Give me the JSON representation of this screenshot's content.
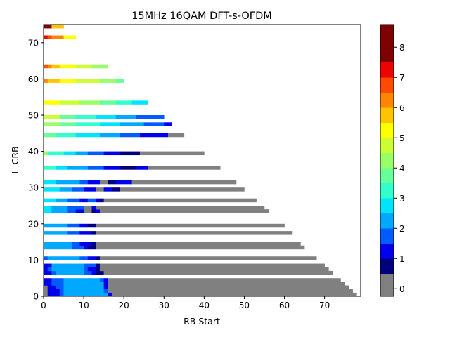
{
  "chart_data": {
    "type": "heatmap",
    "title": "15MHz 16QAM DFT-s-OFDM",
    "xlabel": "RB Start",
    "ylabel": "L_CRB",
    "xlim": [
      0,
      79
    ],
    "ylim": [
      0,
      75
    ],
    "xticks": [
      0,
      10,
      20,
      30,
      40,
      50,
      60,
      70
    ],
    "yticks": [
      0,
      10,
      20,
      30,
      40,
      50,
      60,
      70
    ],
    "colorbar": {
      "levels": [
        "≤0",
        "0.5",
        "1",
        "1.5",
        "2",
        "2.5",
        "3",
        "3.5",
        "4",
        "4.5",
        "5",
        "5.5",
        "6",
        "6.5",
        "7",
        "7.5",
        "8",
        "8.5"
      ],
      "colors": [
        "#808080",
        "#00007f",
        "#0000ed",
        "#005cff",
        "#00a8ff",
        "#00e5ff",
        "#33ffcc",
        "#66ff99",
        "#99ff66",
        "#ccff33",
        "#ffff00",
        "#ffc400",
        "#ff8600",
        "#ff4a00",
        "#ed0400",
        "#7f0000"
      ],
      "ticks": [
        0,
        1,
        2,
        3,
        4,
        5,
        6,
        7,
        8
      ]
    },
    "grid": false,
    "rows": [
      {
        "l": 1,
        "segs": [
          [
            0,
            1,
            0
          ],
          [
            1,
            4,
            2
          ],
          [
            4,
            5,
            3
          ],
          [
            5,
            16,
            4
          ],
          [
            16,
            17,
            2
          ],
          [
            17,
            78,
            0
          ]
        ]
      },
      {
        "l": 2,
        "segs": [
          [
            0,
            1,
            0
          ],
          [
            1,
            4,
            2
          ],
          [
            4,
            5,
            3
          ],
          [
            5,
            15,
            4
          ],
          [
            15,
            16,
            3
          ],
          [
            16,
            77,
            0
          ]
        ]
      },
      {
        "l": 3,
        "segs": [
          [
            0,
            1,
            0
          ],
          [
            1,
            3,
            2
          ],
          [
            3,
            5,
            3
          ],
          [
            5,
            15,
            4
          ],
          [
            15,
            16,
            2
          ],
          [
            16,
            76,
            0
          ]
        ]
      },
      {
        "l": 4,
        "segs": [
          [
            0,
            2,
            2
          ],
          [
            2,
            5,
            3
          ],
          [
            5,
            15,
            4
          ],
          [
            15,
            16,
            2
          ],
          [
            16,
            75,
            0
          ]
        ]
      },
      {
        "l": 5,
        "segs": [
          [
            0,
            2,
            2
          ],
          [
            2,
            5,
            3
          ],
          [
            5,
            14,
            4
          ],
          [
            14,
            15,
            3
          ],
          [
            15,
            16,
            2
          ],
          [
            16,
            74,
            0
          ]
        ]
      },
      {
        "l": 7,
        "segs": [
          [
            0,
            2,
            2
          ],
          [
            2,
            3,
            3
          ],
          [
            3,
            10,
            4
          ],
          [
            10,
            12,
            3
          ],
          [
            12,
            13,
            2
          ],
          [
            13,
            15,
            1
          ],
          [
            15,
            72,
            0
          ]
        ]
      },
      {
        "l": 8,
        "segs": [
          [
            0,
            1,
            2
          ],
          [
            1,
            2,
            3
          ],
          [
            2,
            10,
            4
          ],
          [
            10,
            11,
            3
          ],
          [
            11,
            13,
            2
          ],
          [
            13,
            14,
            1
          ],
          [
            14,
            71,
            0
          ]
        ]
      },
      {
        "l": 9,
        "segs": [
          [
            0,
            2,
            2
          ],
          [
            2,
            10,
            4
          ],
          [
            10,
            13,
            3
          ],
          [
            13,
            14,
            1
          ],
          [
            14,
            70,
            0
          ]
        ]
      },
      {
        "l": 11,
        "segs": [
          [
            0,
            1,
            3
          ],
          [
            1,
            9,
            4
          ],
          [
            9,
            11,
            3
          ],
          [
            11,
            13,
            2
          ],
          [
            13,
            14,
            1
          ],
          [
            14,
            68,
            0
          ]
        ]
      },
      {
        "l": 14,
        "segs": [
          [
            0,
            7,
            4
          ],
          [
            7,
            10,
            3
          ],
          [
            10,
            11,
            2
          ],
          [
            11,
            13,
            1
          ],
          [
            13,
            65,
            0
          ]
        ]
      },
      {
        "l": 15,
        "segs": [
          [
            0,
            7,
            4
          ],
          [
            7,
            9,
            3
          ],
          [
            9,
            12,
            2
          ],
          [
            12,
            13,
            1
          ],
          [
            13,
            64,
            0
          ]
        ]
      },
      {
        "l": 18,
        "segs": [
          [
            0,
            6,
            4
          ],
          [
            6,
            9,
            3
          ],
          [
            9,
            12,
            2
          ],
          [
            12,
            13,
            1
          ],
          [
            13,
            62,
            0
          ]
        ]
      },
      {
        "l": 20,
        "segs": [
          [
            0,
            6,
            4
          ],
          [
            6,
            9,
            3
          ],
          [
            9,
            11,
            2
          ],
          [
            11,
            13,
            1
          ],
          [
            13,
            60,
            0
          ]
        ]
      },
      {
        "l": 24,
        "segs": [
          [
            0,
            2,
            5
          ],
          [
            2,
            6,
            4
          ],
          [
            6,
            8,
            3
          ],
          [
            8,
            10,
            2
          ],
          [
            10,
            12,
            0
          ],
          [
            12,
            13,
            1
          ],
          [
            13,
            14,
            2
          ],
          [
            14,
            56,
            0
          ]
        ]
      },
      {
        "l": 25,
        "segs": [
          [
            0,
            2,
            5
          ],
          [
            2,
            6,
            4
          ],
          [
            6,
            10,
            3
          ],
          [
            10,
            12,
            0
          ],
          [
            12,
            13,
            2
          ],
          [
            13,
            55,
            0
          ]
        ]
      },
      {
        "l": 27,
        "segs": [
          [
            0,
            3,
            5
          ],
          [
            3,
            6,
            4
          ],
          [
            6,
            9,
            3
          ],
          [
            9,
            11,
            2
          ],
          [
            11,
            13,
            3
          ],
          [
            13,
            14,
            2
          ],
          [
            14,
            15,
            1
          ],
          [
            15,
            53,
            0
          ]
        ]
      },
      {
        "l": 30,
        "segs": [
          [
            0,
            4,
            5
          ],
          [
            4,
            7,
            4
          ],
          [
            7,
            10,
            3
          ],
          [
            10,
            13,
            2
          ],
          [
            13,
            15,
            0
          ],
          [
            15,
            17,
            2
          ],
          [
            17,
            19,
            1
          ],
          [
            19,
            50,
            0
          ]
        ]
      },
      {
        "l": 32,
        "segs": [
          [
            0,
            3,
            5
          ],
          [
            3,
            5,
            4
          ],
          [
            5,
            9,
            4
          ],
          [
            9,
            11,
            3
          ],
          [
            11,
            14,
            2
          ],
          [
            14,
            16,
            0
          ],
          [
            16,
            18,
            1
          ],
          [
            18,
            22,
            2
          ],
          [
            22,
            48,
            0
          ]
        ]
      },
      {
        "l": 36,
        "segs": [
          [
            0,
            3,
            6
          ],
          [
            3,
            6,
            5
          ],
          [
            6,
            8,
            4
          ],
          [
            8,
            11,
            4
          ],
          [
            11,
            15,
            3
          ],
          [
            15,
            19,
            2
          ],
          [
            19,
            23,
            1
          ],
          [
            23,
            26,
            2
          ],
          [
            26,
            44,
            0
          ]
        ]
      },
      {
        "l": 40,
        "segs": [
          [
            0,
            1,
            8
          ],
          [
            1,
            5,
            6
          ],
          [
            5,
            8,
            5
          ],
          [
            8,
            11,
            4
          ],
          [
            11,
            15,
            3
          ],
          [
            15,
            19,
            2
          ],
          [
            19,
            24,
            1
          ],
          [
            24,
            40,
            0
          ]
        ]
      },
      {
        "l": 45,
        "segs": [
          [
            0,
            3,
            7
          ],
          [
            3,
            8,
            6
          ],
          [
            8,
            14,
            5
          ],
          [
            14,
            19,
            4
          ],
          [
            19,
            24,
            3
          ],
          [
            24,
            31,
            2
          ],
          [
            31,
            35,
            0
          ]
        ]
      },
      {
        "l": 48,
        "segs": [
          [
            0,
            4,
            8
          ],
          [
            4,
            8,
            7
          ],
          [
            8,
            14,
            6
          ],
          [
            14,
            19,
            5
          ],
          [
            19,
            25,
            4
          ],
          [
            25,
            30,
            3
          ],
          [
            30,
            32,
            2
          ]
        ]
      },
      {
        "l": 50,
        "segs": [
          [
            0,
            4,
            9
          ],
          [
            4,
            8,
            7
          ],
          [
            8,
            13,
            6
          ],
          [
            13,
            18,
            5
          ],
          [
            18,
            23,
            4
          ],
          [
            23,
            30,
            3
          ]
        ]
      },
      {
        "l": 54,
        "segs": [
          [
            0,
            4,
            10
          ],
          [
            4,
            9,
            9
          ],
          [
            9,
            14,
            8
          ],
          [
            14,
            18,
            7
          ],
          [
            18,
            22,
            6
          ],
          [
            22,
            26,
            5
          ]
        ]
      },
      {
        "l": 60,
        "segs": [
          [
            0,
            1,
            12
          ],
          [
            1,
            4,
            11
          ],
          [
            4,
            8,
            10
          ],
          [
            8,
            14,
            9
          ],
          [
            14,
            18,
            8
          ],
          [
            18,
            20,
            7
          ]
        ]
      },
      {
        "l": 64,
        "segs": [
          [
            0,
            1,
            13
          ],
          [
            1,
            2,
            12
          ],
          [
            2,
            4,
            11
          ],
          [
            4,
            8,
            10
          ],
          [
            8,
            12,
            9
          ],
          [
            12,
            16,
            8
          ]
        ]
      },
      {
        "l": 72,
        "segs": [
          [
            0,
            1,
            14
          ],
          [
            1,
            2,
            13
          ],
          [
            2,
            5,
            12
          ],
          [
            5,
            8,
            10
          ]
        ]
      },
      {
        "l": 75,
        "segs": [
          [
            0,
            2,
            15
          ],
          [
            2,
            5,
            11
          ]
        ]
      }
    ]
  }
}
